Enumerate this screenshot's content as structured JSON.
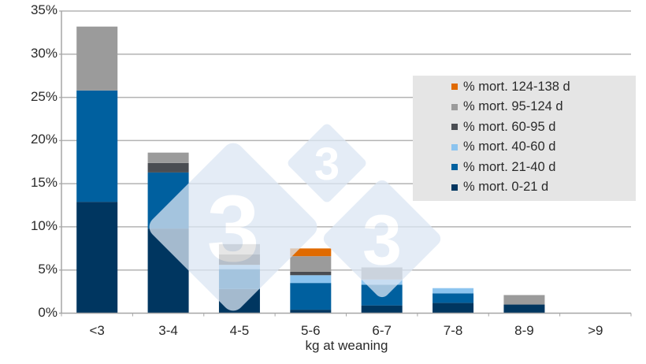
{
  "chart_data": {
    "type": "bar",
    "stacked": true,
    "title": "",
    "xlabel": "kg at weaning",
    "ylabel": "",
    "ylim": [
      0,
      35
    ],
    "yticks": [
      "0%",
      "5%",
      "10%",
      "15%",
      "20%",
      "25%",
      "30%",
      "35%"
    ],
    "grid": true,
    "legend_position": "upper right (inside)",
    "categories": [
      "<3",
      "3-4",
      "4-5",
      "5-6",
      "6-7",
      "7-8",
      "8-9",
      ">9"
    ],
    "series": [
      {
        "name": "% mort. 0-21 d",
        "color": "#003660",
        "values": [
          12.9,
          9.8,
          2.8,
          0.4,
          0.9,
          1.2,
          1.0,
          0
        ]
      },
      {
        "name": "% mort. 21-40 d",
        "color": "#00609f",
        "values": [
          12.9,
          6.5,
          2.3,
          3.1,
          2.4,
          1.1,
          0,
          0
        ]
      },
      {
        "name": "% mort. 40-60 d",
        "color": "#8cc4ef",
        "values": [
          0,
          0,
          0.5,
          0.9,
          0.6,
          0.6,
          0,
          0
        ]
      },
      {
        "name": "% mort. 60-95 d",
        "color": "#4a4d52",
        "values": [
          0,
          1.1,
          1.2,
          0.4,
          0,
          0,
          0,
          0
        ]
      },
      {
        "name": "% mort. 95-124 d",
        "color": "#9b9b9b",
        "values": [
          7.4,
          1.2,
          1.2,
          1.8,
          1.4,
          0,
          1.1,
          0
        ]
      },
      {
        "name": "% mort. 124-138 d",
        "color": "#e06a00",
        "values": [
          0,
          0,
          0,
          0.9,
          0,
          0,
          0,
          0
        ]
      }
    ],
    "totals": [
      33.2,
      18.6,
      8.0,
      7.5,
      5.3,
      2.9,
      2.1,
      0
    ]
  },
  "legend_order": [
    "% mort. 124-138 d",
    "% mort. 95-124 d",
    "% mort. 60-95 d",
    "% mort. 40-60 d",
    "% mort. 21-40 d",
    "% mort. 0-21 d"
  ],
  "watermark": {
    "glyph": "3",
    "color": "#dbe6f3"
  }
}
